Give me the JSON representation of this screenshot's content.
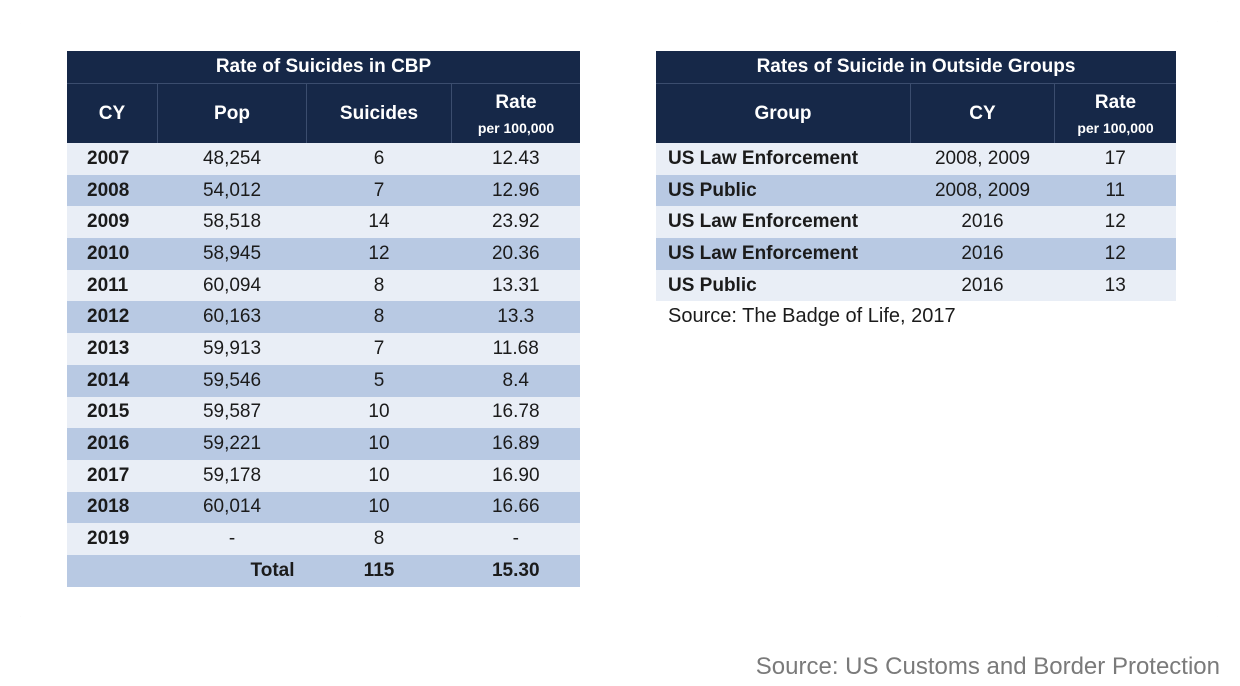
{
  "cbp_table": {
    "title": "Rate of Suicides in CBP",
    "headers": {
      "cy": "CY",
      "pop": "Pop",
      "suicides": "Suicides",
      "rate": "Rate",
      "rate_sub": "per 100,000"
    },
    "rows": [
      {
        "cy": "2007",
        "pop": "48,254",
        "suicides": "6",
        "rate": "12.43"
      },
      {
        "cy": "2008",
        "pop": "54,012",
        "suicides": "7",
        "rate": "12.96"
      },
      {
        "cy": "2009",
        "pop": "58,518",
        "suicides": "14",
        "rate": "23.92"
      },
      {
        "cy": "2010",
        "pop": "58,945",
        "suicides": "12",
        "rate": "20.36"
      },
      {
        "cy": "2011",
        "pop": "60,094",
        "suicides": "8",
        "rate": "13.31"
      },
      {
        "cy": "2012",
        "pop": "60,163",
        "suicides": "8",
        "rate": "13.3"
      },
      {
        "cy": "2013",
        "pop": "59,913",
        "suicides": "7",
        "rate": "11.68"
      },
      {
        "cy": "2014",
        "pop": "59,546",
        "suicides": "5",
        "rate": "8.4"
      },
      {
        "cy": "2015",
        "pop": "59,587",
        "suicides": "10",
        "rate": "16.78"
      },
      {
        "cy": "2016",
        "pop": "59,221",
        "suicides": "10",
        "rate": "16.89"
      },
      {
        "cy": "2017",
        "pop": "59,178",
        "suicides": "10",
        "rate": "16.90"
      },
      {
        "cy": "2018",
        "pop": "60,014",
        "suicides": "10",
        "rate": "16.66"
      },
      {
        "cy": "2019",
        "pop": "-",
        "suicides": "8",
        "rate": "-"
      }
    ],
    "total": {
      "label": "Total",
      "suicides": "115",
      "rate": "15.30"
    }
  },
  "outside_table": {
    "title": "Rates of Suicide in Outside Groups",
    "headers": {
      "group": "Group",
      "cy": "CY",
      "rate": "Rate",
      "rate_sub": "per 100,000"
    },
    "rows": [
      {
        "group": "US Law Enforcement",
        "cy": "2008, 2009",
        "rate": "17"
      },
      {
        "group": "US Public",
        "cy": "2008, 2009",
        "rate": "11"
      },
      {
        "group": "US Law Enforcement",
        "cy": "2016",
        "rate": "12"
      },
      {
        "group": "US Law Enforcement",
        "cy": "2016",
        "rate": "12"
      },
      {
        "group": "US Public",
        "cy": "2016",
        "rate": "13"
      }
    ],
    "source": "Source: The Badge of Life, 2017"
  },
  "page_source": "Source: US Customs and Border Protection",
  "colors": {
    "header_bg": "#162848",
    "row_light": "#e9eef6",
    "row_dark": "#b8c9e3"
  }
}
